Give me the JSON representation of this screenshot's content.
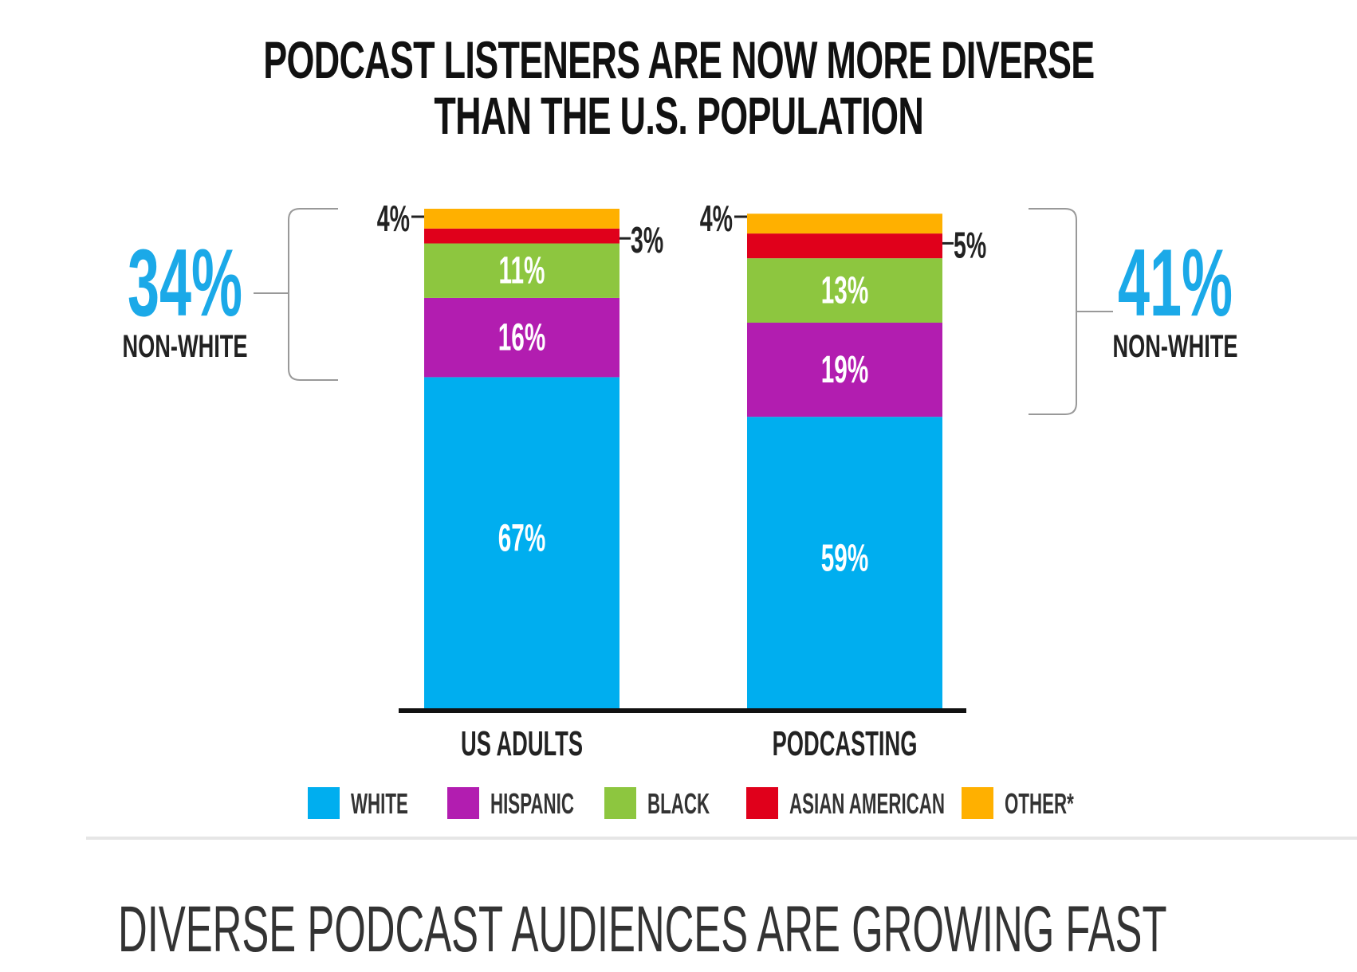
{
  "title_lines": [
    "PODCAST LISTENERS ARE NOW MORE DIVERSE",
    "THAN THE U.S. POPULATION"
  ],
  "subheading": "DIVERSE PODCAST AUDIENCES ARE GROWING FAST",
  "chart_data": {
    "type": "bar",
    "stacked": true,
    "title": "PODCAST LISTENERS ARE NOW MORE DIVERSE THAN THE U.S. POPULATION",
    "xlabel": "",
    "ylabel": "",
    "ylim": [
      0,
      101
    ],
    "grid": false,
    "categories": [
      "US ADULTS",
      "PODCASTING"
    ],
    "series": [
      {
        "name": "WHITE",
        "color": "#00aeef",
        "values": [
          67,
          59
        ],
        "labels": [
          "67%",
          "59%"
        ]
      },
      {
        "name": "HISPANIC",
        "color": "#b21db0",
        "values": [
          16,
          19
        ],
        "labels": [
          "16%",
          "19%"
        ]
      },
      {
        "name": "BLACK",
        "color": "#8dc63f",
        "values": [
          11,
          13
        ],
        "labels": [
          "11%",
          "13%"
        ]
      },
      {
        "name": "ASIAN AMERICAN",
        "color": "#e0001b",
        "values": [
          3,
          5
        ],
        "labels": [
          "3%",
          "5%"
        ]
      },
      {
        "name": "OTHER*",
        "color": "#ffb000",
        "values": [
          4,
          4
        ],
        "labels": [
          "4%",
          "4%"
        ]
      }
    ],
    "annotations": [
      {
        "category": "US ADULTS",
        "value": "34%",
        "text": "NON-WHITE",
        "side": "left",
        "color": "#1ba9e8"
      },
      {
        "category": "PODCASTING",
        "value": "41%",
        "text": "NON-WHITE",
        "side": "right",
        "color": "#1ba9e8"
      }
    ],
    "legend": {
      "placement": "bottom",
      "entries": [
        "WHITE",
        "HISPANIC",
        "BLACK",
        "ASIAN AMERICAN",
        "OTHER*"
      ]
    }
  }
}
